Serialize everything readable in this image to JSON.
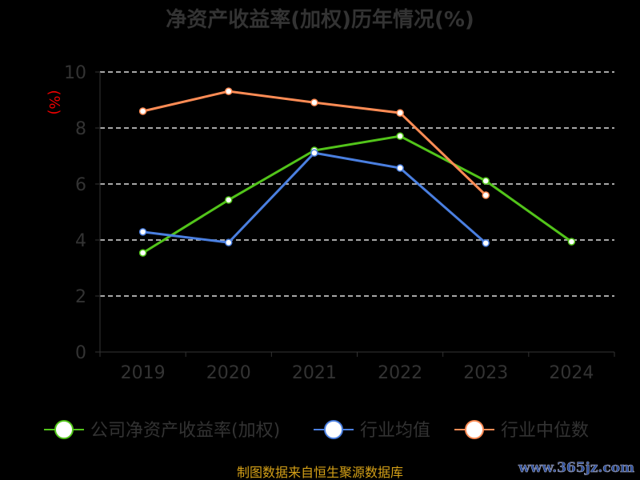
{
  "chart_data": {
    "type": "line",
    "title": "净资产收益率(加权)历年情况(%)",
    "ylabel": "(%)",
    "ylim": [
      0,
      10
    ],
    "yticks": [
      0,
      2,
      4,
      6,
      8,
      10
    ],
    "categories": [
      "2019",
      "2020",
      "2021",
      "2022",
      "2023",
      "2024"
    ],
    "grid": true,
    "legend_position": "bottom",
    "series": [
      {
        "name": "公司净资产收益率(加权)",
        "color": "#52c41a",
        "values": [
          3.54,
          5.43,
          7.2,
          7.71,
          6.11,
          3.94
        ]
      },
      {
        "name": "行业均值",
        "color": "#4a7fe0",
        "values": [
          4.29,
          3.91,
          7.11,
          6.57,
          3.89,
          null
        ]
      },
      {
        "name": "行业中位数",
        "color": "#ff8c55",
        "values": [
          8.6,
          9.31,
          8.91,
          8.54,
          5.6,
          null
        ]
      }
    ]
  },
  "footer": {
    "source": "制图数据来自恒生聚源数据库",
    "watermark": "www.365jz.com"
  }
}
